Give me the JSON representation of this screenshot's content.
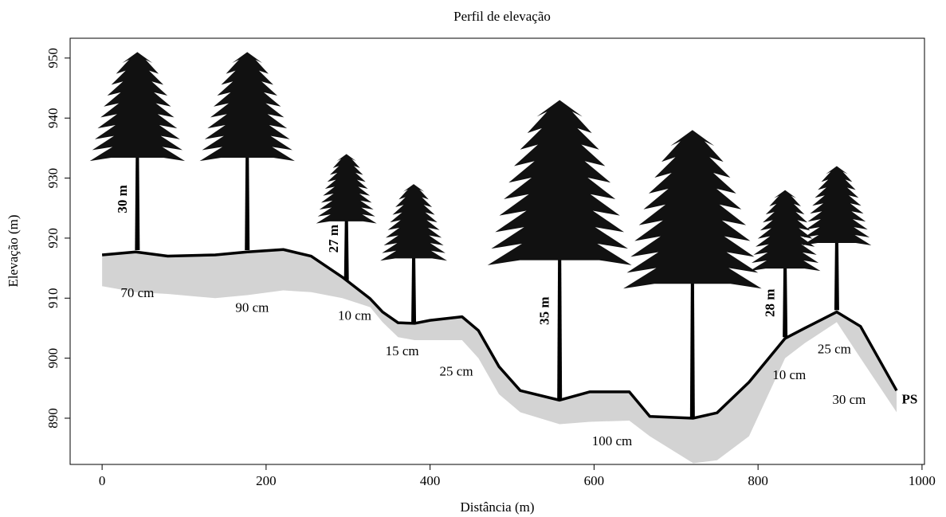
{
  "chart_data": {
    "type": "line",
    "title": "Perfil de elevação",
    "xlabel": "Distância (m)",
    "ylabel": "Elevação (m)",
    "x": [
      0,
      41,
      80,
      138,
      177,
      221,
      255,
      293,
      327,
      342,
      361,
      381,
      400,
      439,
      459,
      484,
      510,
      558,
      595,
      643,
      668,
      721,
      750,
      789,
      833,
      857,
      896,
      925,
      969
    ],
    "values": [
      917.2,
      917.7,
      917,
      917.2,
      917.7,
      918.1,
      917,
      913.5,
      909.9,
      907.7,
      905.9,
      905.8,
      906.3,
      906.9,
      904.6,
      898.6,
      894.6,
      893,
      894.4,
      894.4,
      890.3,
      890,
      890.9,
      896,
      903.3,
      905,
      907.7,
      905.3,
      894.6
    ],
    "soil_bottom": [
      912,
      911,
      910.7,
      910,
      910.5,
      911.3,
      911,
      910,
      908.5,
      906,
      903.5,
      903,
      903,
      903,
      900,
      894,
      891,
      889,
      889.4,
      889.6,
      887,
      882.5,
      883,
      887,
      900,
      902.5,
      906,
      900,
      891
    ],
    "color": "#000000",
    "soil_color": "#d3d3d3",
    "xlim": [
      -39,
      1003
    ],
    "ylim": [
      882.3,
      953.3
    ],
    "xticks": [
      0,
      200,
      400,
      600,
      800,
      1000
    ],
    "yticks": [
      890,
      900,
      910,
      920,
      930,
      940,
      950
    ],
    "trees": [
      {
        "x": 43,
        "base": 918,
        "top": 951
      },
      {
        "x": 177,
        "base": 918,
        "top": 951
      },
      {
        "x": 298,
        "base": 913,
        "top": 934
      },
      {
        "x": 380,
        "base": 905.8,
        "top": 929
      },
      {
        "x": 558,
        "base": 893,
        "top": 943
      },
      {
        "x": 720,
        "base": 890,
        "top": 938
      },
      {
        "x": 833,
        "base": 903.5,
        "top": 928
      },
      {
        "x": 896,
        "base": 908,
        "top": 932
      }
    ],
    "annotations": [
      {
        "text": "70 cm",
        "x": 43,
        "y": 910.7
      },
      {
        "text": "90 cm",
        "x": 183,
        "y": 908.2
      },
      {
        "text": "10 cm",
        "x": 308,
        "y": 906.9
      },
      {
        "text": "15 cm",
        "x": 366,
        "y": 901
      },
      {
        "text": "25 cm",
        "x": 432,
        "y": 897.6
      },
      {
        "text": "100 cm",
        "x": 622,
        "y": 886
      },
      {
        "text": "10 cm",
        "x": 838,
        "y": 897
      },
      {
        "text": "25 cm",
        "x": 893,
        "y": 901.3
      },
      {
        "text": "30 cm",
        "x": 911,
        "y": 892.9
      },
      {
        "text": "PS",
        "x": 985,
        "y": 893
      }
    ],
    "tree_labels": [
      {
        "text": "30 m",
        "x": 26,
        "y": 926.5
      },
      {
        "text": "27 m",
        "x": 284,
        "y": 919.9
      },
      {
        "text": "35 m",
        "x": 541,
        "y": 907.9
      },
      {
        "text": "28 m",
        "x": 816,
        "y": 909.2
      }
    ]
  }
}
